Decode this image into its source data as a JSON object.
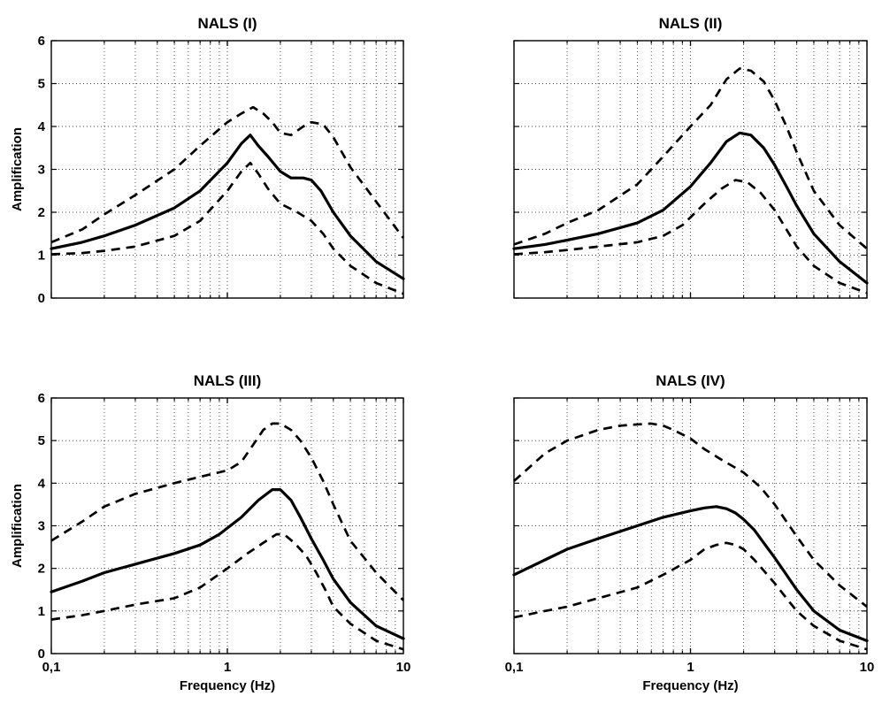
{
  "chart_data": [
    {
      "type": "line",
      "title": "NALS (I)",
      "xlabel": "",
      "ylabel": "Amplification",
      "xscale": "log",
      "xlim": [
        0.1,
        10
      ],
      "ylim": [
        0,
        6
      ],
      "yticks": [
        "0",
        "1",
        "2",
        "3",
        "4",
        "5",
        "6"
      ],
      "xticks": [],
      "grid": true,
      "series": [
        {
          "style": "solid",
          "x": [
            0.1,
            0.15,
            0.2,
            0.3,
            0.5,
            0.7,
            1.0,
            1.2,
            1.35,
            1.5,
            1.7,
            2.0,
            2.3,
            2.7,
            3.0,
            3.4,
            4.0,
            5.0,
            7.0,
            10.0
          ],
          "y": [
            1.15,
            1.3,
            1.45,
            1.7,
            2.1,
            2.5,
            3.15,
            3.6,
            3.8,
            3.55,
            3.3,
            2.95,
            2.8,
            2.8,
            2.75,
            2.5,
            2.0,
            1.45,
            0.85,
            0.45
          ]
        },
        {
          "style": "dashed",
          "x": [
            0.1,
            0.15,
            0.2,
            0.3,
            0.5,
            0.7,
            1.0,
            1.2,
            1.4,
            1.6,
            1.8,
            2.0,
            2.3,
            2.7,
            3.0,
            3.5,
            4.0,
            5.0,
            7.0,
            10.0
          ],
          "y": [
            1.3,
            1.6,
            1.95,
            2.4,
            3.0,
            3.55,
            4.1,
            4.3,
            4.45,
            4.3,
            4.1,
            3.85,
            3.8,
            4.0,
            4.1,
            4.05,
            3.75,
            3.05,
            2.25,
            1.4
          ]
        },
        {
          "style": "dashed",
          "x": [
            0.1,
            0.15,
            0.2,
            0.3,
            0.5,
            0.7,
            1.0,
            1.2,
            1.35,
            1.5,
            1.7,
            2.0,
            2.5,
            3.0,
            3.5,
            4.0,
            5.0,
            7.0,
            10.0
          ],
          "y": [
            1.02,
            1.05,
            1.1,
            1.2,
            1.45,
            1.8,
            2.5,
            2.95,
            3.15,
            2.9,
            2.55,
            2.2,
            2.0,
            1.8,
            1.5,
            1.15,
            0.75,
            0.35,
            0.1
          ]
        }
      ]
    },
    {
      "type": "line",
      "title": "NALS (II)",
      "xlabel": "",
      "ylabel": "",
      "xscale": "log",
      "xlim": [
        0.1,
        10
      ],
      "ylim": [
        0,
        6
      ],
      "yticks": [],
      "xticks": [],
      "grid": true,
      "series": [
        {
          "style": "solid",
          "x": [
            0.1,
            0.15,
            0.2,
            0.3,
            0.5,
            0.7,
            1.0,
            1.3,
            1.6,
            1.9,
            2.2,
            2.6,
            3.0,
            3.5,
            4.0,
            5.0,
            7.0,
            10.0
          ],
          "y": [
            1.15,
            1.25,
            1.35,
            1.5,
            1.75,
            2.05,
            2.6,
            3.15,
            3.65,
            3.85,
            3.8,
            3.5,
            3.1,
            2.6,
            2.15,
            1.5,
            0.85,
            0.35
          ]
        },
        {
          "style": "dashed",
          "x": [
            0.1,
            0.15,
            0.2,
            0.3,
            0.5,
            0.7,
            1.0,
            1.3,
            1.6,
            1.9,
            2.2,
            2.6,
            3.0,
            3.5,
            4.0,
            5.0,
            7.0,
            10.0
          ],
          "y": [
            1.25,
            1.5,
            1.75,
            2.05,
            2.65,
            3.3,
            4.0,
            4.5,
            5.1,
            5.35,
            5.3,
            5.05,
            4.6,
            4.0,
            3.4,
            2.5,
            1.7,
            1.15
          ]
        },
        {
          "style": "dashed",
          "x": [
            0.1,
            0.15,
            0.2,
            0.3,
            0.5,
            0.7,
            0.9,
            1.2,
            1.5,
            1.8,
            2.1,
            2.5,
            3.0,
            3.5,
            4.0,
            5.0,
            7.0,
            10.0
          ],
          "y": [
            1.02,
            1.07,
            1.12,
            1.2,
            1.3,
            1.45,
            1.7,
            2.2,
            2.55,
            2.75,
            2.7,
            2.45,
            2.05,
            1.6,
            1.2,
            0.75,
            0.35,
            0.12
          ]
        }
      ]
    },
    {
      "type": "line",
      "title": "NALS (III)",
      "xlabel": "Frequency (Hz)",
      "ylabel": "Amplification",
      "xscale": "log",
      "xlim": [
        0.1,
        10
      ],
      "ylim": [
        0,
        6
      ],
      "yticks": [
        "0",
        "1",
        "2",
        "3",
        "4",
        "5",
        "6"
      ],
      "xticks": [
        "0,1",
        "1",
        "10"
      ],
      "grid": true,
      "series": [
        {
          "style": "solid",
          "x": [
            0.1,
            0.15,
            0.2,
            0.3,
            0.5,
            0.7,
            0.9,
            1.2,
            1.5,
            1.8,
            2.0,
            2.3,
            2.6,
            3.0,
            3.5,
            4.0,
            5.0,
            7.0,
            10.0
          ],
          "y": [
            1.45,
            1.7,
            1.9,
            2.1,
            2.35,
            2.55,
            2.8,
            3.2,
            3.6,
            3.85,
            3.85,
            3.6,
            3.2,
            2.7,
            2.2,
            1.75,
            1.2,
            0.65,
            0.35
          ]
        },
        {
          "style": "dashed",
          "x": [
            0.1,
            0.15,
            0.2,
            0.3,
            0.5,
            0.7,
            1.0,
            1.2,
            1.4,
            1.6,
            1.8,
            2.0,
            2.3,
            2.6,
            3.0,
            3.5,
            4.0,
            5.0,
            7.0,
            10.0
          ],
          "y": [
            2.65,
            3.1,
            3.45,
            3.75,
            4.0,
            4.15,
            4.3,
            4.5,
            4.9,
            5.25,
            5.4,
            5.4,
            5.25,
            5.0,
            4.6,
            4.05,
            3.5,
            2.65,
            1.9,
            1.25
          ]
        },
        {
          "style": "dashed",
          "x": [
            0.1,
            0.15,
            0.2,
            0.3,
            0.5,
            0.7,
            1.0,
            1.3,
            1.6,
            1.9,
            2.1,
            2.4,
            2.8,
            3.2,
            3.6,
            4.0,
            5.0,
            7.0,
            10.0
          ],
          "y": [
            0.8,
            0.9,
            1.0,
            1.15,
            1.3,
            1.55,
            2.0,
            2.35,
            2.6,
            2.8,
            2.8,
            2.6,
            2.3,
            1.9,
            1.5,
            1.1,
            0.7,
            0.3,
            0.1
          ]
        }
      ]
    },
    {
      "type": "line",
      "title": "NALS (IV)",
      "xlabel": "Frequency (Hz)",
      "ylabel": "",
      "xscale": "log",
      "xlim": [
        0.1,
        10
      ],
      "ylim": [
        0,
        6
      ],
      "yticks": [],
      "xticks": [
        "0,1",
        "1",
        "10"
      ],
      "grid": true,
      "series": [
        {
          "style": "solid",
          "x": [
            0.1,
            0.15,
            0.2,
            0.3,
            0.5,
            0.7,
            1.0,
            1.2,
            1.4,
            1.6,
            1.8,
            2.0,
            2.3,
            2.6,
            3.0,
            3.5,
            4.0,
            5.0,
            7.0,
            10.0
          ],
          "y": [
            1.85,
            2.2,
            2.45,
            2.7,
            3.0,
            3.2,
            3.35,
            3.42,
            3.45,
            3.4,
            3.3,
            3.15,
            2.9,
            2.6,
            2.25,
            1.85,
            1.5,
            1.0,
            0.55,
            0.3
          ]
        },
        {
          "style": "dashed",
          "x": [
            0.1,
            0.15,
            0.2,
            0.3,
            0.4,
            0.5,
            0.6,
            0.7,
            0.8,
            1.0,
            1.2,
            1.5,
            2.0,
            2.5,
            3.0,
            3.5,
            4.0,
            5.0,
            7.0,
            10.0
          ],
          "y": [
            4.05,
            4.7,
            5.0,
            5.25,
            5.35,
            5.38,
            5.4,
            5.35,
            5.25,
            5.05,
            4.8,
            4.55,
            4.25,
            3.9,
            3.5,
            3.1,
            2.75,
            2.2,
            1.6,
            1.1
          ]
        },
        {
          "style": "dashed",
          "x": [
            0.1,
            0.15,
            0.2,
            0.3,
            0.5,
            0.7,
            1.0,
            1.2,
            1.4,
            1.6,
            1.8,
            2.0,
            2.3,
            2.6,
            3.0,
            3.5,
            4.0,
            5.0,
            7.0,
            10.0
          ],
          "y": [
            0.85,
            1.0,
            1.1,
            1.3,
            1.55,
            1.85,
            2.2,
            2.45,
            2.55,
            2.6,
            2.55,
            2.45,
            2.2,
            1.95,
            1.65,
            1.3,
            1.0,
            0.65,
            0.3,
            0.1
          ]
        }
      ]
    }
  ]
}
